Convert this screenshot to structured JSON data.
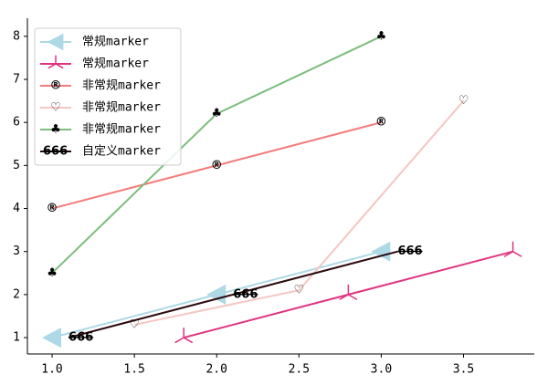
{
  "chart_data": {
    "type": "line",
    "series": [
      {
        "name": "常规marker",
        "color": "#add8e6",
        "marker": "triangle_left",
        "x": [
          1,
          2,
          3
        ],
        "values": [
          1,
          2,
          3
        ]
      },
      {
        "name": "常规marker",
        "color": "#e0337f",
        "marker": "tri_up",
        "x": [
          1.8,
          2.8,
          3.8
        ],
        "values": [
          1,
          2,
          3
        ]
      },
      {
        "name": "非常规marker",
        "color": "#f47b7b",
        "marker": "®",
        "x": [
          1,
          2,
          3
        ],
        "values": [
          4,
          5,
          6
        ]
      },
      {
        "name": "非常规marker",
        "color": "#f5c6c2",
        "marker": "♡",
        "x": [
          1.5,
          2.5,
          3.5
        ],
        "values": [
          1.3,
          2.1,
          6.5
        ]
      },
      {
        "name": "非常规marker",
        "color": "#7cbd7c",
        "marker": "♣",
        "x": [
          1,
          2,
          3
        ],
        "values": [
          2.5,
          6.2,
          8
        ]
      },
      {
        "name": "自定义marker",
        "color": "#2b0a0f",
        "marker": "666",
        "x": [
          1.1,
          2.1,
          3.1
        ],
        "values": [
          1,
          2,
          3
        ]
      }
    ],
    "xlim": [
      0.85,
      3.93
    ],
    "ylim": [
      0.62,
      8.42
    ],
    "xticks": [
      {
        "value": 1,
        "label": "1.0"
      },
      {
        "value": 1.5,
        "label": "1.5"
      },
      {
        "value": 2,
        "label": "2.0"
      },
      {
        "value": 2.5,
        "label": "2.5"
      },
      {
        "value": 3,
        "label": "3.0"
      },
      {
        "value": 3.5,
        "label": "3.5"
      }
    ],
    "yticks": [
      1,
      2,
      3,
      4,
      5,
      6,
      7,
      8
    ],
    "legend": "upper left"
  }
}
